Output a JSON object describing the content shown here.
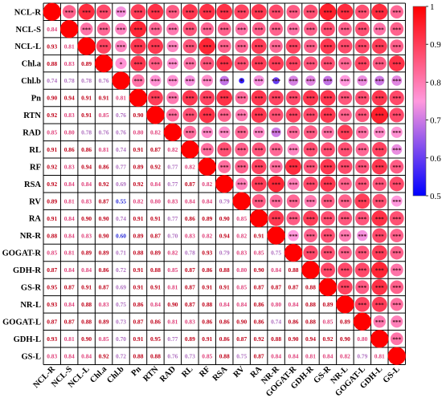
{
  "chart_data": {
    "type": "heatmap",
    "variables": [
      "NCL-R",
      "NCL-S",
      "NCL-L",
      "Chl.a",
      "Chl.b",
      "Pn",
      "RTN",
      "RAD",
      "RL",
      "RF",
      "RSA",
      "RV",
      "RA",
      "NR-R",
      "GOGAT-R",
      "GDH-R",
      "GS-R",
      "NR-L",
      "GOGAT-L",
      "GDH-L",
      "GS-L"
    ],
    "lower_triangle_values": [
      [],
      [
        0.84
      ],
      [
        0.93,
        0.81
      ],
      [
        0.88,
        0.83,
        0.89
      ],
      [
        0.74,
        0.78,
        0.78,
        0.76
      ],
      [
        0.9,
        0.94,
        0.91,
        0.91,
        0.81
      ],
      [
        0.92,
        0.83,
        0.91,
        0.85,
        0.76,
        0.9
      ],
      [
        0.85,
        0.8,
        0.78,
        0.76,
        0.76,
        0.8,
        0.82
      ],
      [
        0.91,
        0.86,
        0.86,
        0.81,
        0.74,
        0.91,
        0.87,
        0.82
      ],
      [
        0.92,
        0.83,
        0.94,
        0.86,
        0.77,
        0.89,
        0.92,
        0.77,
        0.82
      ],
      [
        0.92,
        0.84,
        0.84,
        0.92,
        0.69,
        0.92,
        0.84,
        0.77,
        0.87,
        0.82
      ],
      [
        0.89,
        0.81,
        0.83,
        0.87,
        0.55,
        0.82,
        0.8,
        0.83,
        0.84,
        0.84,
        0.79
      ],
      [
        0.91,
        0.84,
        0.9,
        0.9,
        0.74,
        0.91,
        0.91,
        0.77,
        0.86,
        0.89,
        0.9,
        0.85
      ],
      [
        0.88,
        0.84,
        0.83,
        0.9,
        0.6,
        0.89,
        0.87,
        0.7,
        0.83,
        0.82,
        0.94,
        0.82,
        0.91
      ],
      [
        0.85,
        0.81,
        0.89,
        0.89,
        0.71,
        0.88,
        0.89,
        0.82,
        0.78,
        0.93,
        0.79,
        0.83,
        0.85,
        0.75
      ],
      [
        0.87,
        0.84,
        0.84,
        0.86,
        0.72,
        0.91,
        0.88,
        0.85,
        0.87,
        0.86,
        0.88,
        0.8,
        0.9,
        0.84,
        0.88
      ],
      [
        0.95,
        0.87,
        0.91,
        0.87,
        0.69,
        0.91,
        0.91,
        0.81,
        0.87,
        0.91,
        0.91,
        0.85,
        0.87,
        0.87,
        0.87,
        0.88
      ],
      [
        0.93,
        0.84,
        0.88,
        0.83,
        0.75,
        0.86,
        0.84,
        0.9,
        0.87,
        0.88,
        0.84,
        0.84,
        0.86,
        0.8,
        0.84,
        0.88,
        0.89
      ],
      [
        0.87,
        0.87,
        0.88,
        0.89,
        0.73,
        0.87,
        0.86,
        0.81,
        0.83,
        0.86,
        0.86,
        0.9,
        0.86,
        0.74,
        0.86,
        0.88,
        0.85,
        0.89
      ],
      [
        0.93,
        0.81,
        0.9,
        0.85,
        0.7,
        0.91,
        0.95,
        0.77,
        0.89,
        0.91,
        0.86,
        0.87,
        0.92,
        0.88,
        0.9,
        0.94,
        0.92,
        0.9,
        0.8
      ],
      [
        0.83,
        0.84,
        0.84,
        0.92,
        0.72,
        0.88,
        0.88,
        0.76,
        0.73,
        0.85,
        0.88,
        0.75,
        0.87,
        0.84,
        0.84,
        0.81,
        0.84,
        0.82,
        0.79,
        0.81
      ]
    ],
    "upper_triangle_markers": "circle sized and colored by correlation with significance stars",
    "upper_triangle_exceptions": {
      "Chl.a__Chl.b": "*",
      "Chl.b__RV": "*"
    },
    "upper_triangle_default_stars": "***",
    "diagonal": 1,
    "colorbar": {
      "ticks": [
        "1",
        "0.9",
        "0.8",
        "0.7",
        "0.6",
        "0.5"
      ],
      "range": [
        0.5,
        1
      ],
      "colors": [
        "#ff0000",
        "#ff99dd",
        "#0000ff"
      ]
    },
    "grid": true,
    "legend_placement": "right"
  }
}
